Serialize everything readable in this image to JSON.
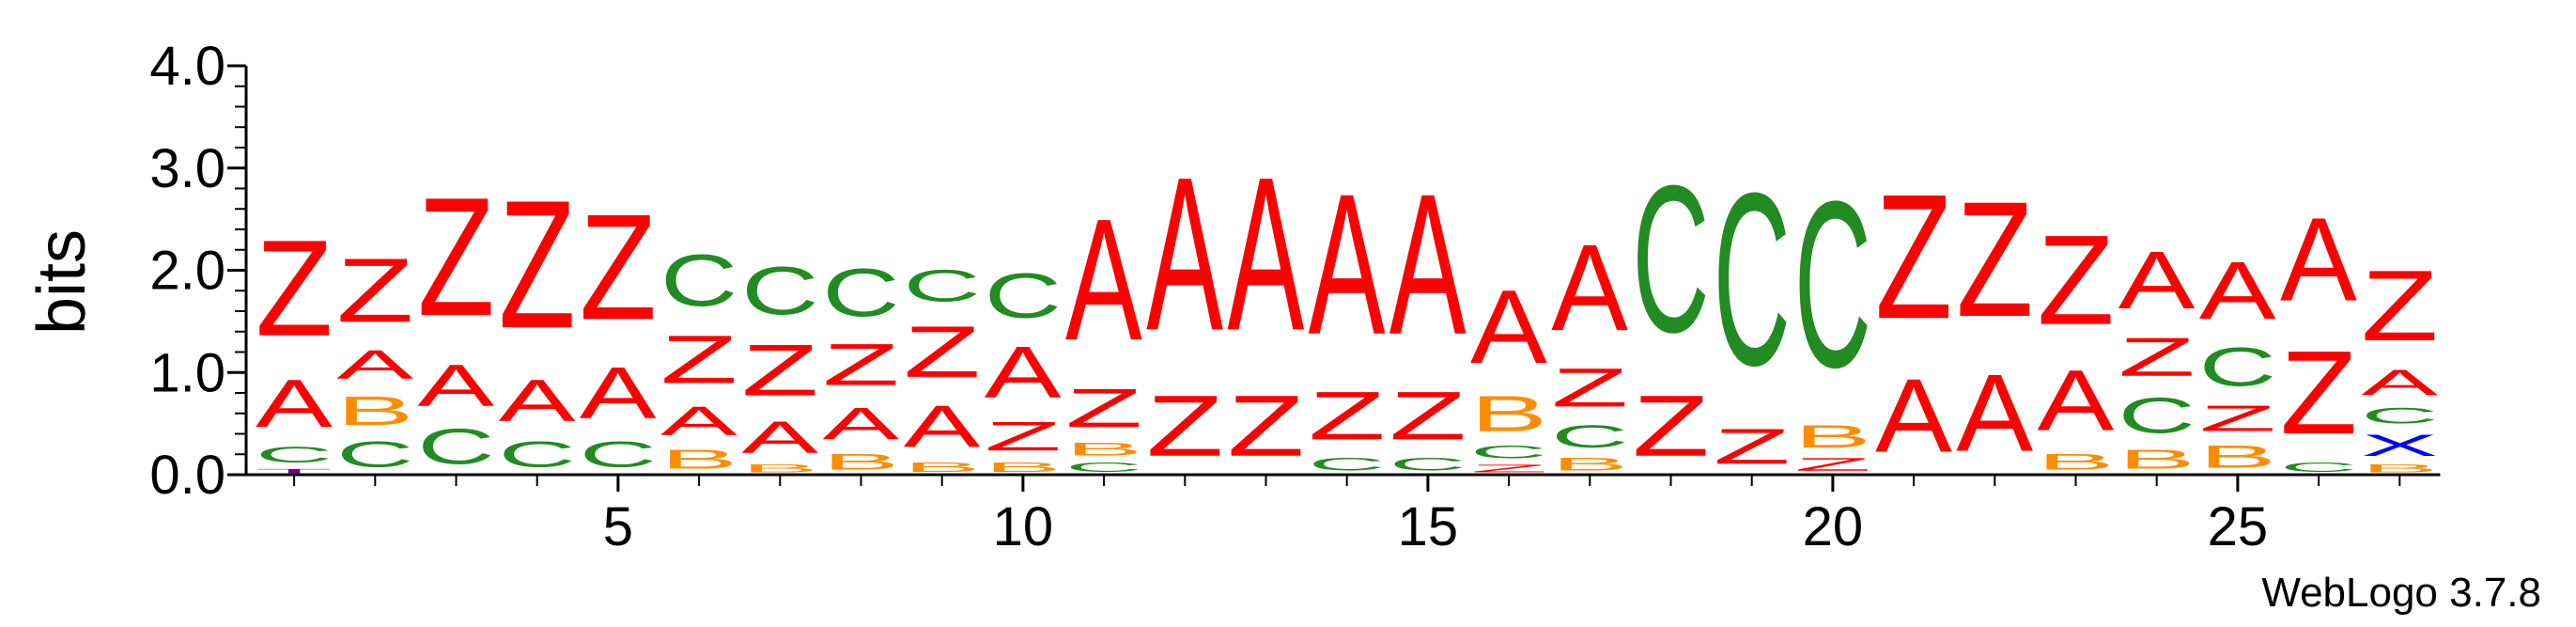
{
  "chart_data": {
    "type": "sequence-logo",
    "ylabel": "bits",
    "ylim": [
      0,
      4.0
    ],
    "yticks": [
      "0.0",
      "1.0",
      "2.0",
      "3.0",
      "4.0"
    ],
    "xticks": [
      5,
      10,
      15,
      20,
      25
    ],
    "xrange": [
      1,
      27
    ],
    "footer": "WebLogo 3.7.8",
    "colors": {
      "A": "#ff0000",
      "Z": "#ff0000",
      "C": "#228b22",
      "B": "#ff8c00",
      "T": "#800080",
      "X": "#0000ff"
    },
    "positions": [
      {
        "pos": 1,
        "stack": [
          [
            "T",
            0.07
          ],
          [
            "C",
            0.25
          ],
          [
            "A",
            0.75
          ],
          [
            "Z",
            1.5
          ]
        ]
      },
      {
        "pos": 2,
        "stack": [
          [
            "C",
            0.4
          ],
          [
            "B",
            0.45
          ],
          [
            "A",
            0.45
          ],
          [
            "Z",
            1.0
          ]
        ]
      },
      {
        "pos": 3,
        "stack": [
          [
            "C",
            0.55
          ],
          [
            "A",
            0.65
          ],
          [
            "Z",
            1.85
          ]
        ]
      },
      {
        "pos": 4,
        "stack": [
          [
            "C",
            0.4
          ],
          [
            "A",
            0.65
          ],
          [
            "Z",
            2.0
          ]
        ]
      },
      {
        "pos": 5,
        "stack": [
          [
            "C",
            0.4
          ],
          [
            "A",
            0.8
          ],
          [
            "Z",
            1.65
          ]
        ]
      },
      {
        "pos": 6,
        "stack": [
          [
            "B",
            0.3
          ],
          [
            "A",
            0.45
          ],
          [
            "Z",
            0.75
          ],
          [
            "C",
            0.8
          ]
        ]
      },
      {
        "pos": 7,
        "stack": [
          [
            "B",
            0.12
          ],
          [
            "A",
            0.5
          ],
          [
            "Z",
            0.8
          ],
          [
            "C",
            0.75
          ]
        ]
      },
      {
        "pos": 8,
        "stack": [
          [
            "B",
            0.25
          ],
          [
            "A",
            0.5
          ],
          [
            "Z",
            0.65
          ],
          [
            "C",
            0.75
          ]
        ]
      },
      {
        "pos": 9,
        "stack": [
          [
            "B",
            0.15
          ],
          [
            "A",
            0.65
          ],
          [
            "Z",
            0.8
          ],
          [
            "C",
            0.5
          ]
        ]
      },
      {
        "pos": 10,
        "stack": [
          [
            "B",
            0.15
          ],
          [
            "Z",
            0.45
          ],
          [
            "A",
            0.8
          ],
          [
            "C",
            0.7
          ]
        ]
      },
      {
        "pos": 11,
        "stack": [
          [
            "C",
            0.15
          ],
          [
            "B",
            0.2
          ],
          [
            "Z",
            0.6
          ],
          [
            "A",
            1.9
          ]
        ]
      },
      {
        "pos": 12,
        "stack": [
          [
            "Z",
            0.95
          ],
          [
            "A",
            2.4
          ]
        ]
      },
      {
        "pos": 13,
        "stack": [
          [
            "Z",
            0.95
          ],
          [
            "A",
            2.4
          ]
        ]
      },
      {
        "pos": 14,
        "stack": [
          [
            "C",
            0.2
          ],
          [
            "Z",
            0.75
          ],
          [
            "A",
            2.2
          ]
        ]
      },
      {
        "pos": 15,
        "stack": [
          [
            "C",
            0.2
          ],
          [
            "Z",
            0.75
          ],
          [
            "A",
            2.2
          ]
        ]
      },
      {
        "pos": 16,
        "stack": [
          [
            "Z",
            0.12
          ],
          [
            "C",
            0.2
          ],
          [
            "B",
            0.55
          ],
          [
            "A",
            1.15
          ]
        ]
      },
      {
        "pos": 17,
        "stack": [
          [
            "B",
            0.2
          ],
          [
            "C",
            0.35
          ],
          [
            "Z",
            0.6
          ],
          [
            "A",
            1.35
          ]
        ]
      },
      {
        "pos": 18,
        "stack": [
          [
            "Z",
            0.95
          ],
          [
            "C",
            2.3
          ]
        ]
      },
      {
        "pos": 19,
        "stack": [
          [
            "Z",
            0.55
          ],
          [
            "C",
            2.7
          ]
        ]
      },
      {
        "pos": 20,
        "stack": [
          [
            "Z",
            0.2
          ],
          [
            "B",
            0.35
          ],
          [
            "C",
            2.6
          ]
        ]
      },
      {
        "pos": 21,
        "stack": [
          [
            "A",
            1.15
          ],
          [
            "Z",
            1.95
          ]
        ]
      },
      {
        "pos": 22,
        "stack": [
          [
            "A",
            1.2
          ],
          [
            "Z",
            1.8
          ]
        ]
      },
      {
        "pos": 23,
        "stack": [
          [
            "B",
            0.25
          ],
          [
            "A",
            0.95
          ],
          [
            "Z",
            1.4
          ]
        ]
      },
      {
        "pos": 24,
        "stack": [
          [
            "B",
            0.3
          ],
          [
            "C",
            0.55
          ],
          [
            "Z",
            0.6
          ],
          [
            "A",
            0.9
          ]
        ]
      },
      {
        "pos": 25,
        "stack": [
          [
            "B",
            0.35
          ],
          [
            "Z",
            0.4
          ],
          [
            "C",
            0.6
          ],
          [
            "A",
            0.9
          ]
        ]
      },
      {
        "pos": 26,
        "stack": [
          [
            "C",
            0.15
          ],
          [
            "Z",
            1.3
          ],
          [
            "A",
            1.3
          ]
        ]
      },
      {
        "pos": 27,
        "stack": [
          [
            "B",
            0.12
          ],
          [
            "X",
            0.33
          ],
          [
            "C",
            0.25
          ],
          [
            "A",
            0.4
          ],
          [
            "Z",
            1.1
          ]
        ]
      }
    ]
  }
}
